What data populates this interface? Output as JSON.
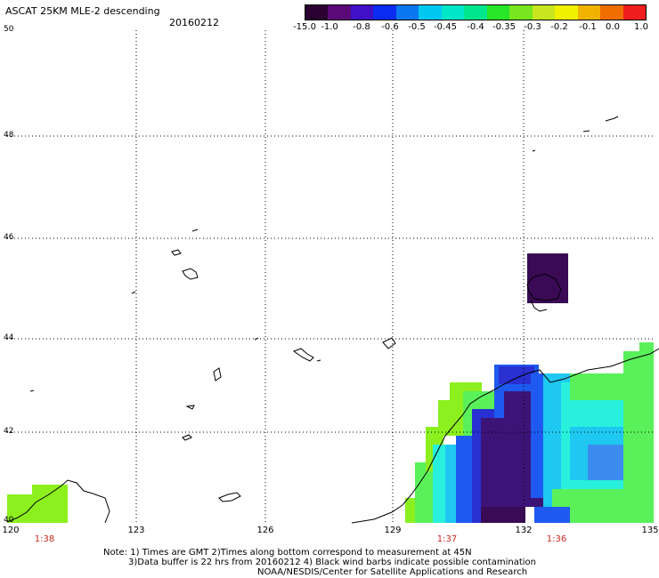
{
  "title": "ASCAT 25KM MLE-2 descending",
  "date": "20160212",
  "colorbar": {
    "labels": [
      "-15.0",
      "-1.0",
      "-0.8",
      "-0.6",
      "-0.5",
      "-0.45",
      "-0.4",
      "-0.35",
      "-0.3",
      "-0.2",
      "-0.1",
      "0.0",
      "1.0"
    ],
    "colors": [
      "#2a0030",
      "#5a0a78",
      "#4010c8",
      "#0a2cf0",
      "#0a78f0",
      "#00c8f0",
      "#00e6c8",
      "#00e68c",
      "#28e628",
      "#78e61e",
      "#c8e61e",
      "#f0f000",
      "#f0b400",
      "#f06e00",
      "#f01e1e"
    ]
  },
  "axes": {
    "lat_labels": [
      "50",
      "48",
      "46",
      "44",
      "42",
      "40"
    ],
    "lon_labels": [
      "120",
      "123",
      "126",
      "129",
      "132",
      "135"
    ],
    "lat_range": [
      40,
      50
    ],
    "lon_range": [
      120,
      135
    ]
  },
  "times": [
    {
      "label": "1:38",
      "lon": 121
    },
    {
      "label": "1:37",
      "lon": 130.5
    },
    {
      "label": "1:36",
      "lon": 132.8
    }
  ],
  "notes": {
    "line1": "Note: 1) Times are GMT 2)Times along bottom correspond to measurement at 45N",
    "line2": "3)Data buffer is 22 hrs from 20160212 4) Black wind barbs indicate possible contamination",
    "line3": "NOAA/NESDIS/Center for Satellite Applications and Research"
  }
}
